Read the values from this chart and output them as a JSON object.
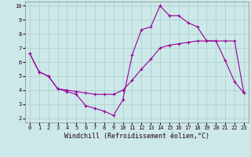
{
  "line1_x": [
    0,
    1,
    2,
    3,
    4,
    5,
    6,
    7,
    8,
    9,
    10,
    11,
    12,
    13,
    14,
    15,
    16,
    17,
    18,
    19,
    20,
    21,
    22,
    23
  ],
  "line1_y": [
    6.6,
    5.3,
    5.0,
    4.1,
    3.9,
    3.7,
    2.9,
    2.7,
    2.5,
    2.2,
    3.3,
    6.5,
    8.3,
    8.5,
    10.0,
    9.3,
    9.3,
    8.8,
    8.5,
    7.5,
    7.5,
    6.1,
    4.6,
    3.8
  ],
  "line2_x": [
    0,
    1,
    2,
    3,
    4,
    5,
    6,
    7,
    8,
    9,
    10,
    11,
    12,
    13,
    14,
    15,
    16,
    17,
    18,
    19,
    20,
    21,
    22,
    23
  ],
  "line2_y": [
    6.6,
    5.3,
    5.0,
    4.1,
    4.0,
    3.9,
    3.8,
    3.7,
    3.7,
    3.7,
    4.0,
    4.7,
    5.5,
    6.2,
    7.0,
    7.2,
    7.3,
    7.4,
    7.5,
    7.5,
    7.5,
    7.5,
    7.5,
    3.8
  ],
  "line_color": "#990099",
  "bg_color": "#cce8e8",
  "grid_color": "#aacccc",
  "xlabel": "Windchill (Refroidissement éolien,°C)",
  "xlim": [
    -0.5,
    23.5
  ],
  "ylim": [
    1.7,
    10.3
  ],
  "yticks": [
    2,
    3,
    4,
    5,
    6,
    7,
    8,
    9,
    10
  ],
  "xticks": [
    0,
    1,
    2,
    3,
    4,
    5,
    6,
    7,
    8,
    9,
    10,
    11,
    12,
    13,
    14,
    15,
    16,
    17,
    18,
    19,
    20,
    21,
    22,
    23
  ],
  "tick_fontsize": 5,
  "xlabel_fontsize": 6,
  "marker": "+"
}
